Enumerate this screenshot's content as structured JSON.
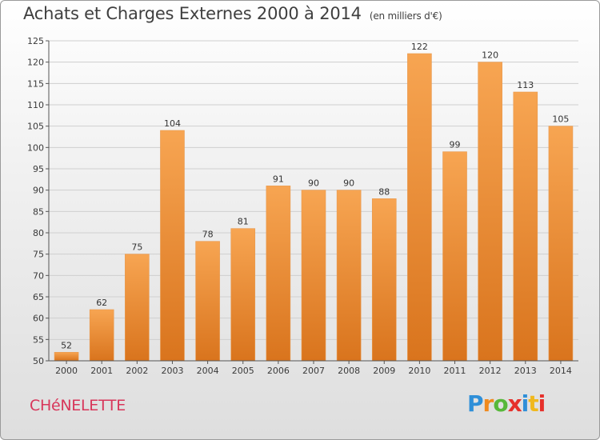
{
  "header": {
    "title": "Achats et Charges Externes 2000 à 2014",
    "subtitle": "(en milliers d'€)"
  },
  "footer": {
    "commune": "CHéNELETTE",
    "logo": [
      "P",
      "r",
      "o",
      "x",
      "i",
      "t",
      "i"
    ]
  },
  "colors": {
    "bar_top": "#f7a552",
    "bar_bottom": "#d9741d",
    "commune": "#d8365a"
  },
  "chart_data": {
    "type": "bar",
    "title": "Achats et Charges Externes 2000 à 2014",
    "subtitle": "(en milliers d'€)",
    "xlabel": "",
    "ylabel": "",
    "categories": [
      "2000",
      "2001",
      "2002",
      "2003",
      "2004",
      "2005",
      "2006",
      "2007",
      "2008",
      "2009",
      "2010",
      "2011",
      "2012",
      "2013",
      "2014"
    ],
    "values": [
      52,
      62,
      75,
      104,
      78,
      81,
      91,
      90,
      90,
      88,
      122,
      99,
      120,
      113,
      105
    ],
    "ylim": [
      50,
      125
    ],
    "yticks": [
      50,
      55,
      60,
      65,
      70,
      75,
      80,
      85,
      90,
      95,
      100,
      105,
      110,
      115,
      120,
      125
    ],
    "grid": true,
    "legend": "none"
  }
}
